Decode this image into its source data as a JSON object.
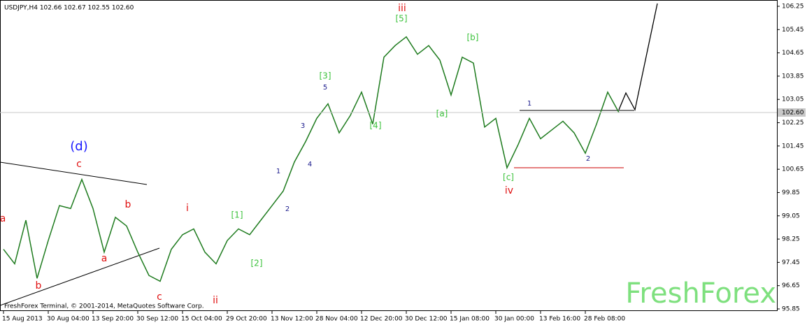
{
  "chart_data": {
    "type": "line",
    "title": "USDJPY,H4  102.66 102.67 102.55 102.60",
    "footer": "FreshForex Terminal, © 2001-2014, MetaQuotes Software Corp.",
    "watermark": "FreshForex",
    "categories": [
      "15 Aug 2013",
      null,
      null,
      null,
      "30 Aug 04:00",
      null,
      null,
      null,
      "13 Sep 20:00",
      null,
      null,
      null,
      "30 Sep 12:00",
      null,
      null,
      null,
      "15 Oct 04:00",
      null,
      null,
      null,
      "29 Oct 20:00",
      null,
      null,
      null,
      "13 Nov 12:00",
      null,
      null,
      null,
      "28 Nov 04:00",
      null,
      null,
      null,
      "12 Dec 20:00",
      null,
      null,
      null,
      "30 Dec 12:00",
      null,
      null,
      null,
      "15 Jan 08:00",
      null,
      null,
      null,
      "30 Jan 00:00",
      null,
      null,
      null,
      "13 Feb 16:00",
      null,
      null,
      null,
      "28 Feb 08:00",
      null,
      null,
      null
    ],
    "values": [
      97.9,
      97.4,
      98.9,
      96.9,
      98.2,
      99.4,
      99.3,
      100.3,
      99.3,
      97.8,
      99.0,
      98.7,
      97.8,
      97.0,
      96.8,
      97.9,
      98.4,
      98.6,
      97.8,
      97.4,
      98.2,
      98.6,
      98.4,
      98.9,
      99.4,
      99.9,
      100.9,
      101.6,
      102.4,
      102.9,
      101.9,
      102.5,
      103.3,
      102.2,
      104.5,
      104.9,
      105.2,
      104.6,
      104.9,
      104.4,
      103.2,
      104.5,
      104.3,
      102.1,
      102.4,
      100.7,
      101.5,
      102.4,
      101.7,
      102.0,
      102.3,
      101.9,
      101.2,
      102.2,
      103.3,
      102.6
    ],
    "color": "#1e7b1e",
    "ylim": [
      95.85,
      106.25
    ],
    "yticks": [
      95.85,
      96.65,
      97.45,
      98.25,
      99.05,
      99.85,
      100.65,
      101.45,
      102.25,
      103.05,
      103.85,
      104.65,
      105.45,
      106.25
    ],
    "last_price": {
      "value": 102.6,
      "label": "102.60"
    },
    "grid": false,
    "annotations": [
      {
        "text": "(d)",
        "color": "#1a1aff"
      },
      {
        "text": "c",
        "color": "#e01010"
      },
      {
        "text": "b",
        "color": "#e01010"
      },
      {
        "text": "a",
        "color": "#e01010"
      },
      {
        "text": "b",
        "color": "#e01010"
      },
      {
        "text": "a",
        "color": "#e01010"
      },
      {
        "text": "c",
        "color": "#e01010"
      },
      {
        "text": "i",
        "color": "#e01010"
      },
      {
        "text": "ii",
        "color": "#e01010"
      },
      {
        "text": "iii",
        "color": "#e01010"
      },
      {
        "text": "iv",
        "color": "#e01010"
      },
      {
        "text": "[1]",
        "color": "#3cc23c"
      },
      {
        "text": "[2]",
        "color": "#3cc23c"
      },
      {
        "text": "[3]",
        "color": "#3cc23c"
      },
      {
        "text": "[4]",
        "color": "#3cc23c"
      },
      {
        "text": "[5]",
        "color": "#3cc23c"
      },
      {
        "text": "[a]",
        "color": "#3cc23c"
      },
      {
        "text": "[b]",
        "color": "#3cc23c"
      },
      {
        "text": "[c]",
        "color": "#3cc23c"
      },
      {
        "text": "1",
        "color": "#1a1a8c"
      },
      {
        "text": "2",
        "color": "#1a1a8c"
      },
      {
        "text": "3",
        "color": "#1a1a8c"
      },
      {
        "text": "4",
        "color": "#1a1a8c"
      },
      {
        "text": "5",
        "color": "#1a1a8c"
      },
      {
        "text": "1",
        "color": "#1a1a8c"
      },
      {
        "text": "2",
        "color": "#1a1a8c"
      }
    ]
  }
}
